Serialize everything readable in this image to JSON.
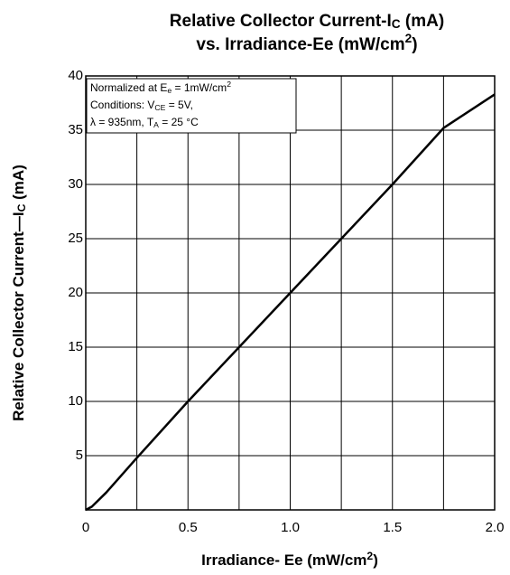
{
  "chart_data": {
    "type": "line",
    "title": [
      [
        {
          "text": "Relative Collector Current-I"
        },
        {
          "text": "C",
          "script": "sub"
        },
        {
          "text": " (mA)"
        }
      ],
      [
        {
          "text": "vs. Irradiance-Ee (mW/cm"
        },
        {
          "text": "2",
          "script": "sup"
        },
        {
          "text": ")"
        }
      ]
    ],
    "x_label": [
      {
        "text": "Irradiance- Ee (mW/cm"
      },
      {
        "text": "2",
        "script": "sup"
      },
      {
        "text": ")"
      }
    ],
    "y_label": [
      {
        "text": "Relative  Collector Current—I"
      },
      {
        "text": "C",
        "script": "sub"
      },
      {
        "text": " (mA)"
      }
    ],
    "annotation": [
      [
        {
          "text": "Normalized at E"
        },
        {
          "text": "e",
          "script": "sub"
        },
        {
          "text": " = 1mW/cm"
        },
        {
          "text": "2",
          "script": "sup"
        }
      ],
      [
        {
          "text": "Conditions: V"
        },
        {
          "text": "CE",
          "script": "sub"
        },
        {
          "text": " = 5V,"
        }
      ],
      [
        {
          "text": "λ = 935nm, T"
        },
        {
          "text": "A",
          "script": "sub"
        },
        {
          "text": " = 25 °C"
        }
      ]
    ],
    "x": [
      0,
      0.03,
      0.1,
      0.25,
      0.5,
      0.75,
      1.0,
      1.25,
      1.5,
      1.75,
      2.0
    ],
    "series": [
      {
        "color": "#000000",
        "values": [
          0,
          0.3,
          1.6,
          4.8,
          10,
          15,
          20,
          25,
          30,
          35.2,
          38.3
        ]
      }
    ],
    "xlim": [
      0,
      2
    ],
    "ylim": [
      0,
      40
    ],
    "xticks": [
      0,
      0.5,
      {
        "value": 1,
        "label": "1.0"
      },
      1.5,
      {
        "value": 2,
        "label": "2.0"
      }
    ],
    "x_minor_grid": [
      0.25,
      0.75,
      1.25,
      1.75
    ],
    "yticks": [
      5,
      10,
      15,
      20,
      25,
      30,
      35,
      40
    ],
    "grid": true
  }
}
